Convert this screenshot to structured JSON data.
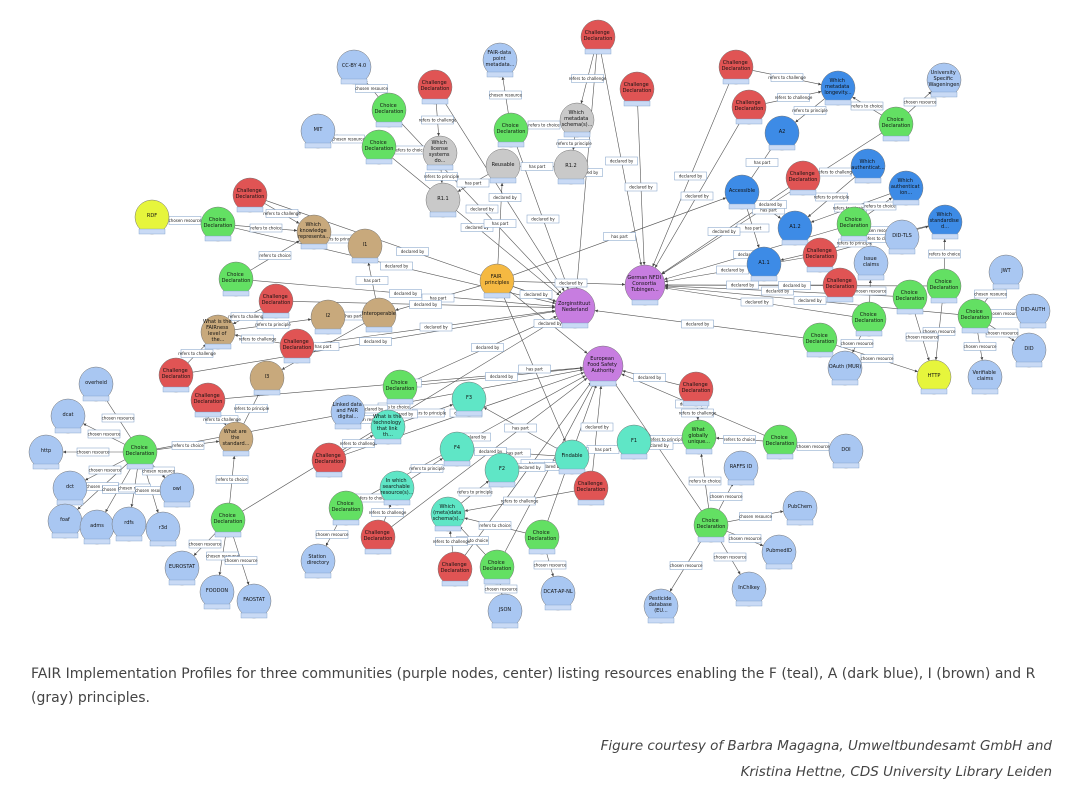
{
  "colors": {
    "P": "#c77de0",
    "O": "#f5b942",
    "G": "#c9c9c9",
    "L": "#a9c7f2",
    "D": "#3d8be6",
    "B": "#c8a97c",
    "T": "#5fe6c6",
    "Y": "#e6f53c",
    "Gr": "#63e063",
    "R": "#e05454"
  },
  "nodes": [
    {
      "label": "Zorginstituut Nederland",
      "kind": "P"
    },
    {
      "label": "German NFDI Consortia Tubingen...",
      "kind": "P"
    },
    {
      "label": "European Food Safety Authority",
      "kind": "P"
    },
    {
      "label": "FAIR principles",
      "kind": "O"
    },
    {
      "label": "Reusable",
      "kind": "G"
    },
    {
      "label": "R1.2",
      "kind": "G"
    },
    {
      "label": "R1.1",
      "kind": "G"
    },
    {
      "label": "Which license systems do...",
      "kind": "G"
    },
    {
      "label": "Which metadata schema(s)...",
      "kind": "G"
    },
    {
      "label": "FAIR-data point metadata...",
      "kind": "L"
    },
    {
      "label": "Accessible",
      "kind": "D"
    },
    {
      "label": "A2",
      "kind": "D"
    },
    {
      "label": "A1.2",
      "kind": "D"
    },
    {
      "label": "A1.1",
      "kind": "D"
    },
    {
      "label": "Which metadata longevity...",
      "kind": "D"
    },
    {
      "label": "Which authenticat...",
      "kind": "D"
    },
    {
      "label": "Which authenticat ion...",
      "kind": "D"
    },
    {
      "label": "Which standardise d...",
      "kind": "D"
    },
    {
      "label": "Interoperable",
      "kind": "B"
    },
    {
      "label": "I1",
      "kind": "B"
    },
    {
      "label": "I2",
      "kind": "B"
    },
    {
      "label": "I3",
      "kind": "B"
    },
    {
      "label": "Which knowledge representa...",
      "kind": "B"
    },
    {
      "label": "What is the FAIRness level of the...",
      "kind": "B"
    },
    {
      "label": "What are the standard...",
      "kind": "B"
    },
    {
      "label": "Findable",
      "kind": "T"
    },
    {
      "label": "F1",
      "kind": "T"
    },
    {
      "label": "F2",
      "kind": "T"
    },
    {
      "label": "F3",
      "kind": "T"
    },
    {
      "label": "F4",
      "kind": "T"
    },
    {
      "label": "What is the technology that link th...",
      "kind": "T"
    },
    {
      "label": "In which searchable resource(s)...",
      "kind": "T"
    },
    {
      "label": "Which (meta)data schema(s)...",
      "kind": "T"
    },
    {
      "label": "RDF",
      "kind": "Y"
    },
    {
      "label": "HTTP",
      "kind": "Y"
    },
    {
      "label": "What globally unique...",
      "kind": "Gr"
    },
    {
      "label": "Choice Declaration",
      "kind": "Gr"
    },
    {
      "label": "Choice Declaration",
      "kind": "Gr"
    },
    {
      "label": "Choice Declaration",
      "kind": "Gr"
    },
    {
      "label": "Choice Declaration",
      "kind": "Gr"
    },
    {
      "label": "Choice Declaration",
      "kind": "Gr"
    },
    {
      "label": "Choice Declaration",
      "kind": "Gr"
    },
    {
      "label": "Choice Declaration",
      "kind": "Gr"
    },
    {
      "label": "Choice Declaration",
      "kind": "Gr"
    },
    {
      "label": "Choice Declaration",
      "kind": "Gr"
    },
    {
      "label": "Choice Declaration",
      "kind": "Gr"
    },
    {
      "label": "Choice Declaration",
      "kind": "Gr"
    },
    {
      "label": "Choice Declaration",
      "kind": "Gr"
    },
    {
      "label": "Choice Declaration",
      "kind": "Gr"
    },
    {
      "label": "Choice Declaration",
      "kind": "Gr"
    },
    {
      "label": "Choice Declaration",
      "kind": "Gr"
    },
    {
      "label": "Choice Declaration",
      "kind": "Gr"
    },
    {
      "label": "Choice Declaration",
      "kind": "Gr"
    },
    {
      "label": "Choice Declaration",
      "kind": "Gr"
    },
    {
      "label": "Choice Declaration",
      "kind": "Gr"
    },
    {
      "label": "Choice Declaration",
      "kind": "Gr"
    },
    {
      "label": "Challenge Declaration",
      "kind": "R"
    },
    {
      "label": "Challenge Declaration",
      "kind": "R"
    },
    {
      "label": "Challenge Declaration",
      "kind": "R"
    },
    {
      "label": "Challenge Declaration",
      "kind": "R"
    },
    {
      "label": "Challenge Declaration",
      "kind": "R"
    },
    {
      "label": "Challenge Declaration",
      "kind": "R"
    },
    {
      "label": "Challenge Declaration",
      "kind": "R"
    },
    {
      "label": "Challenge Declaration",
      "kind": "R"
    },
    {
      "label": "Challenge Declaration",
      "kind": "R"
    },
    {
      "label": "Challenge Declaration",
      "kind": "R"
    },
    {
      "label": "Challenge Declaration",
      "kind": "R"
    },
    {
      "label": "Challenge Declaration",
      "kind": "R"
    },
    {
      "label": "Challenge Declaration",
      "kind": "R"
    },
    {
      "label": "Challenge Declaration",
      "kind": "R"
    },
    {
      "label": "Challenge Declaration",
      "kind": "R"
    },
    {
      "label": "Challenge Declaration",
      "kind": "R"
    },
    {
      "label": "Challenge Declaration",
      "kind": "R"
    },
    {
      "label": "Challenge Declaration",
      "kind": "R"
    },
    {
      "label": "CC-BY 4.0",
      "kind": "L"
    },
    {
      "label": "MIT",
      "kind": "L"
    },
    {
      "label": "University Specific Wageningen",
      "kind": "L"
    },
    {
      "label": "DID-TLS",
      "kind": "L"
    },
    {
      "label": "Issue claims",
      "kind": "L"
    },
    {
      "label": "JWT",
      "kind": "L"
    },
    {
      "label": "DID-AUTH",
      "kind": "L"
    },
    {
      "label": "DID",
      "kind": "L"
    },
    {
      "label": "Verifiable claims",
      "kind": "L"
    },
    {
      "label": "OAuth (MUR)",
      "kind": "L"
    },
    {
      "label": "DOI",
      "kind": "L"
    },
    {
      "label": "RAFFS ID",
      "kind": "L"
    },
    {
      "label": "PubChem",
      "kind": "L"
    },
    {
      "label": "PubmedID",
      "kind": "L"
    },
    {
      "label": "InChIkey",
      "kind": "L"
    },
    {
      "label": "Pesticide database (EU...",
      "kind": "L"
    },
    {
      "label": "DCAT-AP-NL",
      "kind": "L"
    },
    {
      "label": "JSON",
      "kind": "L"
    },
    {
      "label": "Station directory",
      "kind": "L"
    },
    {
      "label": "Linked data and FAIR digital...",
      "kind": "L"
    },
    {
      "label": "overheid",
      "kind": "L"
    },
    {
      "label": "dcat",
      "kind": "L"
    },
    {
      "label": "http",
      "kind": "L"
    },
    {
      "label": "dct",
      "kind": "L"
    },
    {
      "label": "foaf",
      "kind": "L"
    },
    {
      "label": "adms",
      "kind": "L"
    },
    {
      "label": "rdfs",
      "kind": "L"
    },
    {
      "label": "owl",
      "kind": "L"
    },
    {
      "label": "r3d",
      "kind": "L"
    },
    {
      "label": "EUROSTAT",
      "kind": "L"
    },
    {
      "label": "FOODON",
      "kind": "L"
    },
    {
      "label": "FAOSTAT",
      "kind": "L"
    }
  ],
  "edge_labels": {
    "cr": "chosen resource",
    "rc": "refers to choice",
    "rh": "refers to challenge",
    "rp": "refers to principle",
    "db": "declared by",
    "hp": "has part"
  },
  "caption": "FAIR Implementation Profiles for three communities (purple nodes, center) listing resources enabling the F (teal), A (dark blue), I (brown) and R (gray) principles.",
  "credit": [
    "Figure courtesy of Barbra Magagna, Umweltbundesamt GmbH and",
    "Kristina Hettne, CDS University Library Leiden"
  ]
}
